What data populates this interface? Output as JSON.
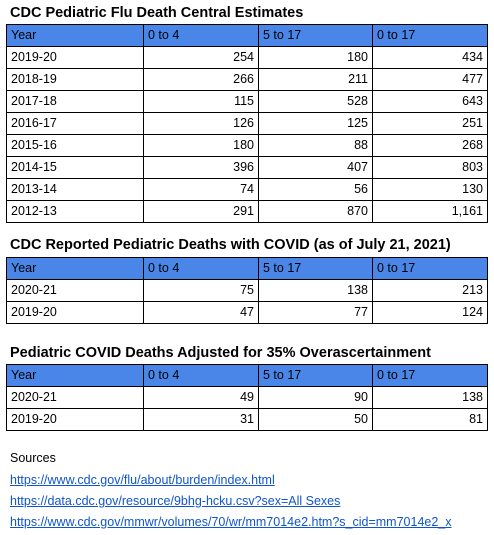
{
  "flu": {
    "title": "CDC Pediatric Flu Death Central Estimates",
    "headers": [
      "Year",
      "0 to 4",
      "5 to 17",
      "0 to 17"
    ],
    "rows": [
      [
        "2019-20",
        "254",
        "180",
        "434"
      ],
      [
        "2018-19",
        "266",
        "211",
        "477"
      ],
      [
        "2017-18",
        "115",
        "528",
        "643"
      ],
      [
        "2016-17",
        "126",
        "125",
        "251"
      ],
      [
        "2015-16",
        "180",
        "88",
        "268"
      ],
      [
        "2014-15",
        "396",
        "407",
        "803"
      ],
      [
        "2013-14",
        "74",
        "56",
        "130"
      ],
      [
        "2012-13",
        "291",
        "870",
        "1,161"
      ]
    ]
  },
  "covid": {
    "title": "CDC Reported Pediatric Deaths with COVID (as of July 21, 2021)",
    "headers": [
      "Year",
      "0 to 4",
      "5 to 17",
      "0 to 17"
    ],
    "rows": [
      [
        "2020-21",
        "75",
        "138",
        "213"
      ],
      [
        "2019-20",
        "47",
        "77",
        "124"
      ]
    ]
  },
  "adjusted": {
    "title": "Pediatric COVID Deaths Adjusted for 35% Overascertainment",
    "headers": [
      "Year",
      "0 to 4",
      "5 to 17",
      "0 to 17"
    ],
    "rows": [
      [
        "2020-21",
        "49",
        "90",
        "138"
      ],
      [
        "2019-20",
        "31",
        "50",
        "81"
      ]
    ]
  },
  "sources": {
    "label": "Sources",
    "links": [
      "https://www.cdc.gov/flu/about/burden/index.html",
      "https://data.cdc.gov/resource/9bhg-hcku.csv?sex=All Sexes",
      "https://www.cdc.gov/mmwr/volumes/70/wr/mm7014e2.htm?s_cid=mm7014e2_x"
    ]
  },
  "colors": {
    "header_fill": "#4a86e8",
    "link": "#1155cc"
  }
}
